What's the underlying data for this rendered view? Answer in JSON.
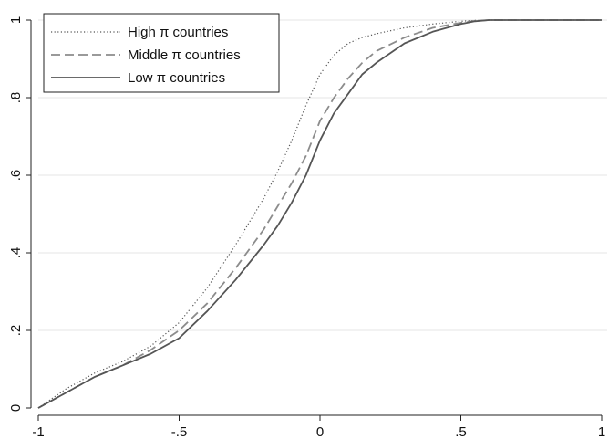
{
  "chart_data": {
    "type": "line",
    "title": "",
    "xlabel": "",
    "ylabel": "",
    "xlim": [
      -1,
      1
    ],
    "ylim": [
      0,
      1
    ],
    "x_ticks": [
      -1,
      -0.5,
      0,
      0.5,
      1
    ],
    "x_tick_labels": [
      "-1",
      "-.5",
      "0",
      ".5",
      "1"
    ],
    "y_ticks": [
      0,
      0.2,
      0.4,
      0.6,
      0.8,
      1
    ],
    "y_tick_labels": [
      "0",
      ".2",
      ".4",
      ".6",
      ".8",
      "1"
    ],
    "grid": "horizontal",
    "legend_position": "top-left",
    "series": [
      {
        "name": "High π countries",
        "style": "dotted",
        "color": "#555555",
        "x": [
          -1,
          -0.9,
          -0.8,
          -0.7,
          -0.6,
          -0.5,
          -0.4,
          -0.3,
          -0.2,
          -0.15,
          -0.1,
          -0.05,
          0,
          0.05,
          0.1,
          0.15,
          0.2,
          0.3,
          0.4,
          0.5,
          0.55,
          0.6,
          1
        ],
        "y": [
          0,
          0.05,
          0.09,
          0.12,
          0.16,
          0.22,
          0.31,
          0.42,
          0.54,
          0.61,
          0.69,
          0.78,
          0.86,
          0.91,
          0.94,
          0.955,
          0.965,
          0.98,
          0.99,
          0.997,
          0.999,
          1,
          1
        ]
      },
      {
        "name": "Middle π countries",
        "style": "dashed",
        "color": "#8c8c8c",
        "x": [
          -1,
          -0.9,
          -0.8,
          -0.7,
          -0.6,
          -0.5,
          -0.4,
          -0.3,
          -0.2,
          -0.15,
          -0.1,
          -0.05,
          0,
          0.05,
          0.1,
          0.15,
          0.2,
          0.3,
          0.4,
          0.5,
          0.55,
          0.6,
          1
        ],
        "y": [
          0,
          0.04,
          0.08,
          0.11,
          0.15,
          0.2,
          0.27,
          0.36,
          0.46,
          0.52,
          0.58,
          0.65,
          0.74,
          0.8,
          0.85,
          0.89,
          0.92,
          0.955,
          0.98,
          0.993,
          0.998,
          1,
          1
        ]
      },
      {
        "name": "Low π countries",
        "style": "solid",
        "color": "#555555",
        "x": [
          -1,
          -0.9,
          -0.8,
          -0.7,
          -0.6,
          -0.5,
          -0.4,
          -0.3,
          -0.2,
          -0.15,
          -0.1,
          -0.05,
          0,
          0.05,
          0.1,
          0.15,
          0.2,
          0.3,
          0.4,
          0.5,
          0.55,
          0.6,
          1
        ],
        "y": [
          0,
          0.04,
          0.08,
          0.11,
          0.14,
          0.18,
          0.25,
          0.33,
          0.42,
          0.47,
          0.53,
          0.6,
          0.69,
          0.76,
          0.81,
          0.86,
          0.89,
          0.94,
          0.97,
          0.99,
          0.997,
          1,
          1
        ]
      }
    ]
  }
}
